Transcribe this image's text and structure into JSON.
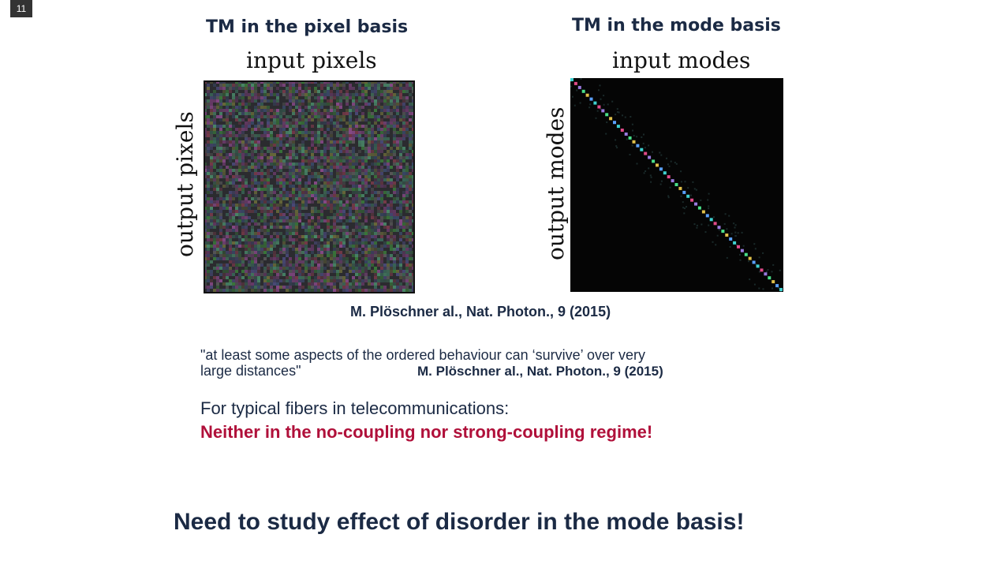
{
  "slide": {
    "number": "11"
  },
  "left_panel": {
    "title": "TM in the pixel basis",
    "x_axis_label": "input pixels",
    "y_axis_label": "output pixels"
  },
  "right_panel": {
    "title": "TM in the mode basis",
    "x_axis_label": "input modes",
    "y_axis_label": "output modes"
  },
  "figure_citation": "M. Plöschner al., Nat. Photon., 9 (2015)",
  "quote": {
    "line1": "\"at least some aspects of the ordered behaviour can ‘survive’ over very",
    "line2": "large distances\"",
    "citation": "M. Plöschner al., Nat. Photon., 9 (2015)"
  },
  "statement": {
    "line1": "For typical fibers in telecommunications:",
    "line2": "Neither in the no-coupling nor strong-coupling regime!",
    "line2_color": "#b0103a"
  },
  "conclusion": "Need to study effect of disorder in the mode basis!"
}
